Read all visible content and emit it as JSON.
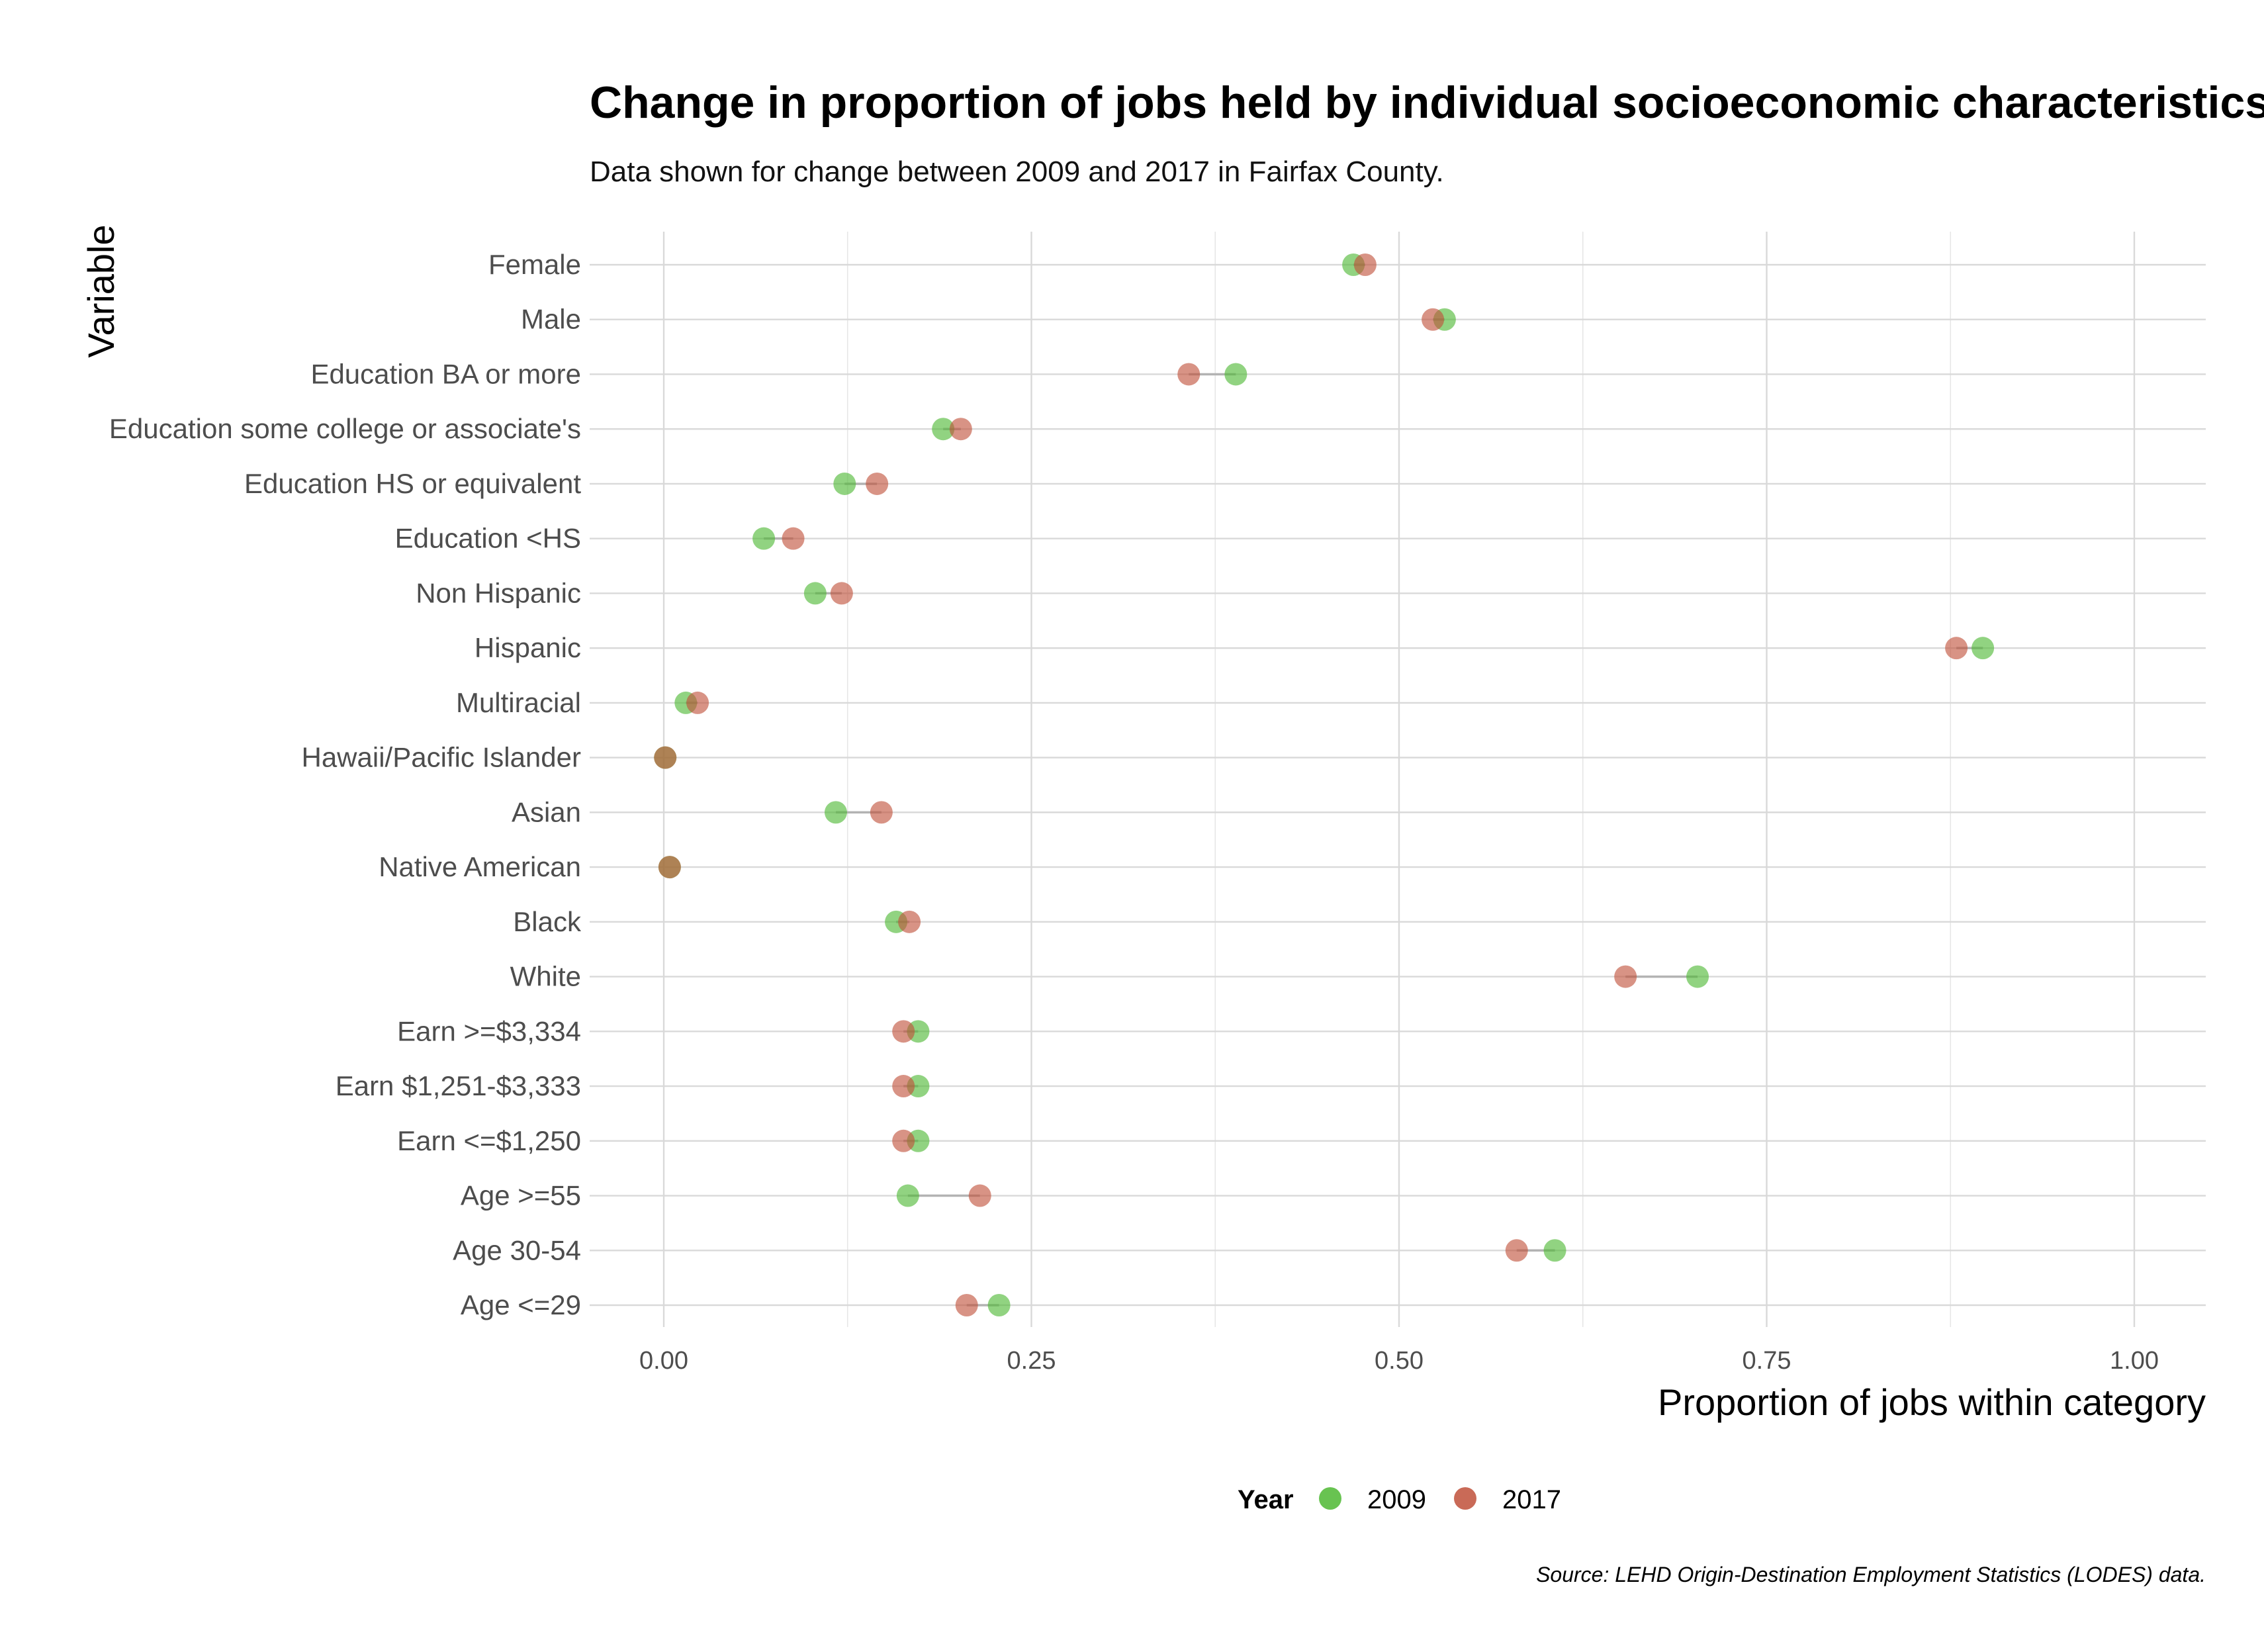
{
  "chart_data": {
    "type": "scatter",
    "subtype": "dumbbell",
    "title": "Change in proportion of jobs held by individual socioeconomic characteristics",
    "subtitle": "Data shown for change between 2009 and 2017 in Fairfax County.",
    "xlabel": "Proportion of jobs within category",
    "ylabel": "Variable",
    "xlim": [
      -0.12,
      1.05
    ],
    "x_ticks": [
      0,
      0.25,
      0.5,
      0.75,
      1.0
    ],
    "x_tick_labels": [
      "0.00",
      "0.25",
      "0.50",
      "0.75",
      "1.00"
    ],
    "grid": true,
    "legend": {
      "title": "Year",
      "placement": "bottom"
    },
    "caption": "Source: LEHD Origin-Destination Employment Statistics (LODES) data.",
    "categories": [
      "Female",
      "Male",
      "Education BA or more",
      "Education some college or associate's",
      "Education HS or equivalent",
      "Education <HS",
      "Non Hispanic",
      "Hispanic",
      "Multiracial",
      "Hawaii/Pacific Islander",
      "Asian",
      "Native American",
      "Black",
      "White",
      "Earn >=$3,334",
      "Earn $1,251-$3,333",
      "Earn <=$1,250",
      "Age >=55",
      "Age 30-54",
      "Age <=29"
    ],
    "series": [
      {
        "name": "2009",
        "color": "#4db833",
        "values": [
          0.469,
          0.531,
          0.389,
          0.19,
          0.123,
          0.068,
          0.103,
          0.897,
          0.015,
          0.001,
          0.117,
          0.004,
          0.158,
          0.703,
          0.173,
          0.173,
          0.173,
          0.166,
          0.606,
          0.228
        ]
      },
      {
        "name": "2017",
        "color": "#c0503a",
        "values": [
          0.477,
          0.523,
          0.357,
          0.202,
          0.145,
          0.088,
          0.121,
          0.879,
          0.023,
          0.001,
          0.148,
          0.004,
          0.167,
          0.654,
          0.163,
          0.163,
          0.163,
          0.215,
          0.58,
          0.206
        ]
      }
    ]
  }
}
